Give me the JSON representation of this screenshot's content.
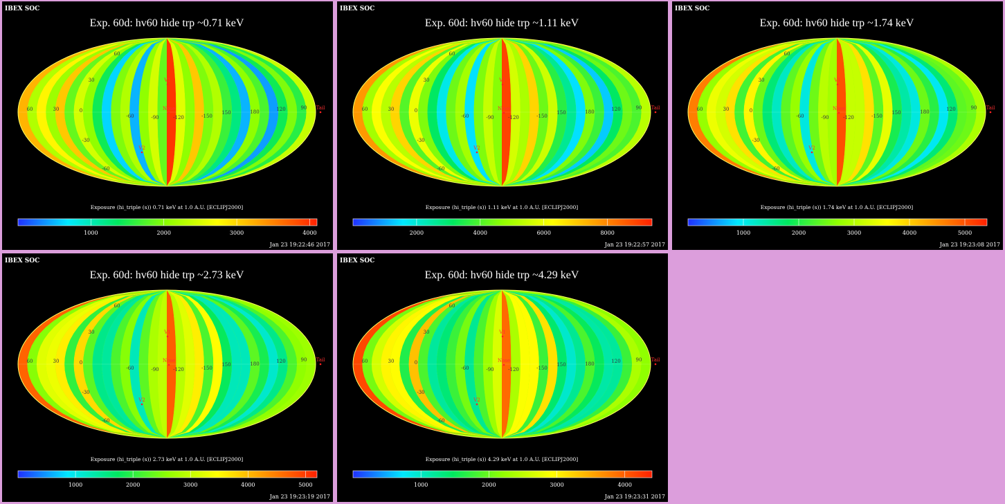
{
  "page": {
    "background": "#dc9edc"
  },
  "panels": [
    {
      "header": "IBEX SOC",
      "title": "Exp.   60d: hv60 hide trp ~0.71 keV",
      "cbar_label": "Exposure (hi_triple (s))  0.71 keV at 1.0 A.U. [ECLIPJ2000]",
      "cbar_ticks": [
        1000,
        2000,
        3000,
        4000
      ],
      "cbar_range": [
        0,
        4100
      ],
      "timestamp": "Jan 23 19:22:46 2017",
      "band_max": 4100
    },
    {
      "header": "IBEX SOC",
      "title": "Exp.   60d: hv60 hide trp ~1.11 keV",
      "cbar_label": "Exposure (hi_triple (s))  1.11 keV at 1.0 A.U. [ECLIPJ2000]",
      "cbar_ticks": [
        2000,
        4000,
        6000,
        8000
      ],
      "cbar_range": [
        0,
        9400
      ],
      "timestamp": "Jan 23 19:22:57 2017",
      "band_max": 9400
    },
    {
      "header": "IBEX SOC",
      "title": "Exp.   60d: hv60 hide trp ~1.74 keV",
      "cbar_label": "Exposure (hi_triple (s))  1.74 keV at 1.0 A.U. [ECLIPJ2000]",
      "cbar_ticks": [
        1000,
        2000,
        3000,
        4000,
        5000
      ],
      "cbar_range": [
        0,
        5400
      ],
      "timestamp": "Jan 23 19:23:08 2017",
      "band_max": 5400
    },
    {
      "header": "IBEX SOC",
      "title": "Exp.   60d: hv60 hide trp ~2.73 keV",
      "cbar_label": "Exposure (hi_triple (s))  2.73 keV at 1.0 A.U. [ECLIPJ2000]",
      "cbar_ticks": [
        1000,
        2000,
        3000,
        4000,
        5000
      ],
      "cbar_range": [
        0,
        5200
      ],
      "timestamp": "Jan 23 19:23:19 2017",
      "band_max": 5200
    },
    {
      "header": "IBEX SOC",
      "title": "Exp.   60d: hv60 hide trp ~4.29 keV",
      "cbar_label": "Exposure (hi_triple (s))  4.29 keV at 1.0 A.U. [ECLIPJ2000]",
      "cbar_ticks": [
        1000,
        2000,
        3000,
        4000
      ],
      "cbar_range": [
        0,
        4400
      ],
      "timestamp": "Jan 23 19:23:31 2017",
      "band_max": 4400
    }
  ],
  "map_labels": {
    "lon_ticks": [
      "60",
      "30",
      "0",
      "-60",
      "-90",
      "-120",
      "-150",
      "150",
      "180",
      "120",
      "90"
    ],
    "lat_ticks": [
      "60",
      "30",
      "-30",
      "-60"
    ],
    "markers": [
      "V1",
      "V2",
      "Nose",
      "Tail"
    ]
  },
  "chart_data": {
    "type": "heatmap",
    "projection": "Mollweide (ecliptic J2000)",
    "band_fractions": [
      0.78,
      0.55,
      0.68,
      0.52,
      0.75,
      0.45,
      0.6,
      0.5,
      0.35,
      0.15,
      0.48,
      0.55,
      0.12,
      0.5,
      0.6,
      0.45,
      0.97,
      0.62,
      0.5,
      0.75,
      0.48,
      0.55,
      0.4,
      0.3,
      0.12,
      0.5,
      0.42,
      0.1,
      0.35,
      0.48,
      0.38,
      0.58
    ],
    "colormap": [
      "#2030ff",
      "#00e8ff",
      "#00e860",
      "#90ff00",
      "#ffff00",
      "#ff9000",
      "#ff2000"
    ]
  }
}
